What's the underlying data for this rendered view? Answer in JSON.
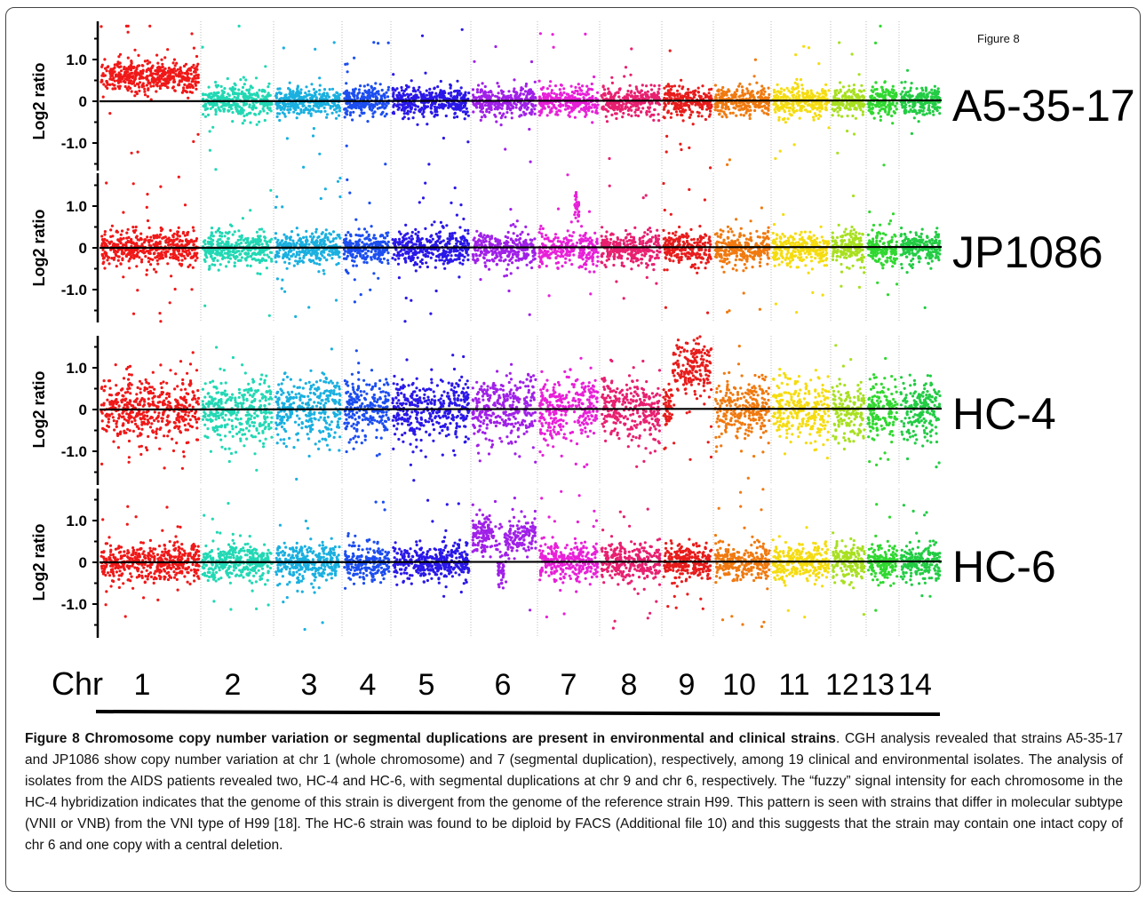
{
  "figure_label": "Figure 8",
  "caption": {
    "title": "Figure 8 Chromosome copy number variation or segmental duplications are present in environmental and clinical strains",
    "body": ". CGH analysis revealed that strains A5-35-17 and JP1086 show copy number variation at chr 1 (whole chromosome) and 7 (segmental duplication), respectively, among 19 clinical and environmental isolates. The analysis of isolates from the AIDS patients revealed two, HC-4 and HC-6, with segmental duplications at chr 9 and chr 6, respectively. The “fuzzy” signal intensity for each chromosome in the HC-4 hybridization indicates that the genome of this strain is divergent from the genome of the reference strain H99. This pattern is seen with strains that differ in molecular subtype (VNII or VNB) from the VNI type of H99 [18]. The HC-6 strain was found to be diploid by FACS (Additional file 10) and this suggests that the strain may contain one intact copy of chr 6 and one copy with a central deletion."
  },
  "chart_data": {
    "type": "scatter",
    "ylabel": "Log2 ratio",
    "y_ticks": [
      "1.0",
      "0",
      "-1.0"
    ],
    "y_tick_values": [
      1.0,
      0,
      -1.0
    ],
    "ylim": [
      -2.0,
      1.8
    ],
    "x_axis_title": "Chr",
    "chromosomes": [
      "1",
      "2",
      "3",
      "4",
      "5",
      "6",
      "7",
      "8",
      "9",
      "10",
      "11",
      "12",
      "13",
      "14"
    ],
    "chromosome_colors": [
      "#f01818",
      "#22d8b4",
      "#1ab0e0",
      "#1c4ef0",
      "#2a18e8",
      "#a020e8",
      "#e820d8",
      "#e82070",
      "#e81c1c",
      "#f07a10",
      "#f5dc10",
      "#a8e020",
      "#30d830",
      "#22cc44"
    ],
    "panels": [
      {
        "strain": "A5-35-17",
        "baseline": 0,
        "noise": 0.18,
        "segments": [
          {
            "chr": "1",
            "mean": 0.6
          }
        ],
        "notes": "whole chromosome 1 gain"
      },
      {
        "strain": "JP1086",
        "baseline": 0,
        "noise": 0.2,
        "segments": [
          {
            "chr": "7",
            "mean": 1.0,
            "partial": "narrow segment"
          }
        ],
        "notes": "segmental duplication on chr 7"
      },
      {
        "strain": "HC-4",
        "baseline": 0,
        "noise": 0.38,
        "segments": [
          {
            "chr": "9",
            "mean": 1.0,
            "partial": "right portion"
          }
        ],
        "notes": "segmental duplication on chr 9; fuzzy signal"
      },
      {
        "strain": "HC-6",
        "baseline": 0,
        "noise": 0.22,
        "segments": [
          {
            "chr": "6",
            "mean": 0.65,
            "partial": "flanking regions, central dip to -0.2"
          }
        ],
        "notes": "segmental duplication on chr 6"
      }
    ]
  }
}
